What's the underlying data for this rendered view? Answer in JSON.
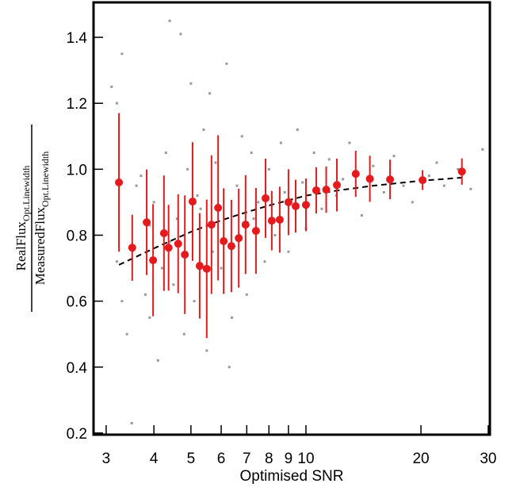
{
  "chart_data": {
    "type": "scatter",
    "xlabel": "Optimised SNR",
    "ylabel": {
      "numerator": "RealFlux",
      "numerator_sub": "Opt.Linewidth",
      "denominator": "MeasuredFlux",
      "denominator_sub": "Opt.Linewidth"
    },
    "xscale": "log",
    "xlim": [
      2.78,
      30.3
    ],
    "ylim": [
      0.195,
      1.506
    ],
    "xticks": [
      3,
      4,
      5,
      6,
      7,
      8,
      9,
      10,
      20,
      30
    ],
    "yticks": [
      0.2,
      0.4,
      0.6,
      0.8,
      {
        "value": 1.0,
        "label": "1.0"
      },
      1.2,
      1.4
    ],
    "scatter": {
      "color": "#999999",
      "x": [
        3.1,
        3.2,
        3.3,
        3.2,
        3.3,
        3.4,
        3.5,
        3.6,
        3.7,
        3.8,
        3.9,
        4.0,
        4.1,
        4.2,
        4.3,
        4.4,
        4.5,
        4.6,
        4.7,
        4.8,
        4.9,
        5.0,
        5.1,
        5.2,
        5.4,
        5.5,
        5.6,
        5.8,
        6.0,
        6.2,
        6.4,
        6.6,
        6.8,
        7.0,
        7.2,
        7.5,
        7.8,
        8.0,
        8.3,
        8.6,
        9.0,
        9.5,
        10,
        10.5,
        11,
        11.5,
        12,
        13,
        14,
        15,
        16,
        17,
        18,
        19,
        21,
        23,
        25,
        27,
        29,
        22,
        6.3,
        5.3,
        4.4,
        3.9,
        8.8,
        12.5,
        9.8,
        7.3,
        6.7,
        5.7
      ],
      "y": [
        1.25,
        1.2,
        1.35,
        0.72,
        0.6,
        0.5,
        0.23,
        0.95,
        0.98,
        0.62,
        0.55,
        0.9,
        0.42,
        0.7,
        1.05,
        1.45,
        0.65,
        0.85,
        1.41,
        0.5,
        1.0,
        1.26,
        0.6,
        0.92,
        1.12,
        0.45,
        1.23,
        1.02,
        0.7,
        1.32,
        0.55,
        0.95,
        1.1,
        0.62,
        1.05,
        0.9,
        0.72,
        1.0,
        0.8,
        1.08,
        0.75,
        1.12,
        0.82,
        1.05,
        0.88,
        1.03,
        0.92,
        1.08,
        0.86,
        1.01,
        0.93,
        1.04,
        0.95,
        0.9,
        0.98,
        0.95,
        1.0,
        0.94,
        1.06,
        1.02,
        0.4,
        0.88,
        0.78,
        0.83,
        0.93,
        0.97,
        0.96,
        0.85,
        0.8,
        0.75
      ]
    },
    "binned": {
      "color": "#e41a1c",
      "x": [
        3.24,
        3.51,
        3.83,
        3.98,
        4.25,
        4.37,
        4.63,
        4.82,
        5.05,
        5.27,
        5.5,
        5.66,
        5.89,
        6.09,
        6.38,
        6.67,
        6.95,
        7.4,
        7.84,
        8.14,
        8.54,
        9.0,
        9.4,
        10.0,
        10.64,
        11.3,
        12.05,
        13.5,
        14.7,
        16.6,
        20.2,
        25.6
      ],
      "values": [
        0.96,
        0.762,
        0.839,
        0.724,
        0.806,
        0.762,
        0.774,
        0.741,
        0.902,
        0.707,
        0.698,
        0.832,
        0.883,
        0.782,
        0.767,
        0.791,
        0.832,
        0.813,
        0.912,
        0.844,
        0.847,
        0.9,
        0.888,
        0.892,
        0.936,
        0.938,
        0.952,
        0.986,
        0.971,
        0.969,
        0.967,
        0.993
      ],
      "errors": [
        0.21,
        0.1,
        0.16,
        0.17,
        0.175,
        0.13,
        0.15,
        0.18,
        0.18,
        0.16,
        0.21,
        0.21,
        0.22,
        0.16,
        0.14,
        0.15,
        0.15,
        0.13,
        0.12,
        0.09,
        0.1,
        0.1,
        0.08,
        0.08,
        0.07,
        0.07,
        0.08,
        0.07,
        0.07,
        0.06,
        0.03,
        0.04
      ]
    },
    "fit": {
      "color": "#000000",
      "x": [
        3.24,
        4,
        5,
        6,
        7,
        8,
        10,
        12,
        15,
        20,
        26
      ],
      "values": [
        0.71,
        0.76,
        0.81,
        0.845,
        0.87,
        0.89,
        0.92,
        0.935,
        0.95,
        0.965,
        0.975
      ]
    }
  }
}
